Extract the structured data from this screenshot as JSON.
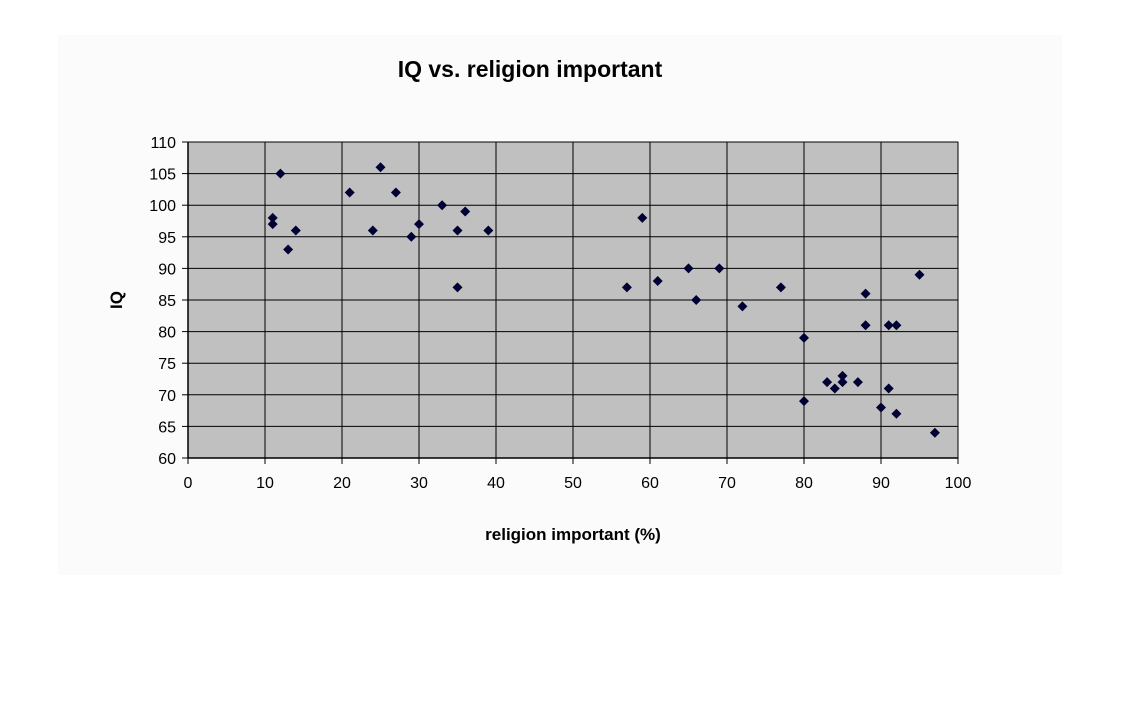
{
  "chart_data": {
    "type": "scatter",
    "title": "IQ vs. religion important",
    "xlabel": "religion important (%)",
    "ylabel": "IQ",
    "xlim": [
      0,
      100
    ],
    "ylim": [
      60,
      110
    ],
    "xticks": [
      0,
      10,
      20,
      30,
      40,
      50,
      60,
      70,
      80,
      90,
      100
    ],
    "yticks": [
      60,
      65,
      70,
      75,
      80,
      85,
      90,
      95,
      100,
      105,
      110
    ],
    "grid": true,
    "marker": "diamond",
    "colors": {
      "plot_background": "#c0c0c0",
      "marker": "#000033",
      "grid": "#000000"
    },
    "points": [
      {
        "x": 11,
        "y": 98
      },
      {
        "x": 11,
        "y": 97
      },
      {
        "x": 12,
        "y": 105
      },
      {
        "x": 13,
        "y": 93
      },
      {
        "x": 14,
        "y": 96
      },
      {
        "x": 21,
        "y": 102
      },
      {
        "x": 24,
        "y": 96
      },
      {
        "x": 25,
        "y": 106
      },
      {
        "x": 27,
        "y": 102
      },
      {
        "x": 29,
        "y": 95
      },
      {
        "x": 30,
        "y": 97
      },
      {
        "x": 33,
        "y": 100
      },
      {
        "x": 35,
        "y": 96
      },
      {
        "x": 35,
        "y": 87
      },
      {
        "x": 36,
        "y": 99
      },
      {
        "x": 39,
        "y": 96
      },
      {
        "x": 57,
        "y": 87
      },
      {
        "x": 59,
        "y": 98
      },
      {
        "x": 61,
        "y": 88
      },
      {
        "x": 65,
        "y": 90
      },
      {
        "x": 66,
        "y": 85
      },
      {
        "x": 69,
        "y": 90
      },
      {
        "x": 72,
        "y": 84
      },
      {
        "x": 77,
        "y": 87
      },
      {
        "x": 80,
        "y": 79
      },
      {
        "x": 80,
        "y": 69
      },
      {
        "x": 83,
        "y": 72
      },
      {
        "x": 84,
        "y": 71
      },
      {
        "x": 85,
        "y": 73
      },
      {
        "x": 85,
        "y": 72
      },
      {
        "x": 87,
        "y": 72
      },
      {
        "x": 88,
        "y": 86
      },
      {
        "x": 88,
        "y": 81
      },
      {
        "x": 90,
        "y": 68
      },
      {
        "x": 91,
        "y": 81
      },
      {
        "x": 91,
        "y": 71
      },
      {
        "x": 92,
        "y": 81
      },
      {
        "x": 92,
        "y": 67
      },
      {
        "x": 95,
        "y": 89
      },
      {
        "x": 97,
        "y": 64
      }
    ]
  }
}
